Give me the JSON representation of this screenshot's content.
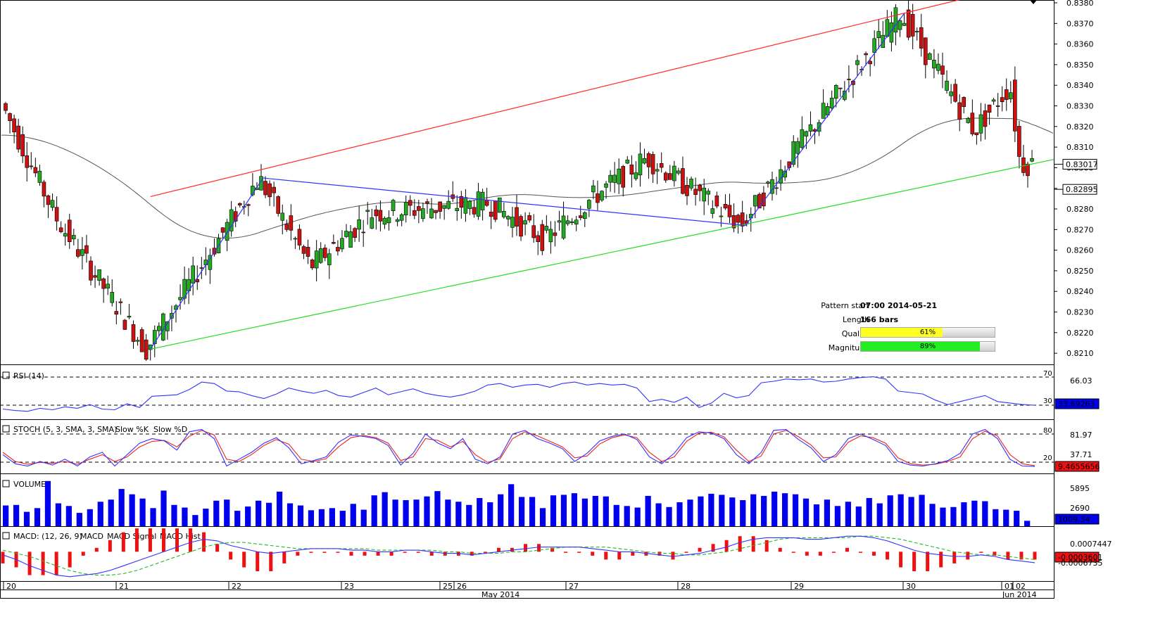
{
  "chart_data": {
    "type": "candlestick",
    "price_panel": {
      "ylim": [
        0.8208,
        0.838
      ],
      "y_ticks": [
        "0.8380",
        "0.8370",
        "0.8360",
        "0.8350",
        "0.8340",
        "0.8330",
        "0.8320",
        "0.8310",
        "0.8300",
        "0.8290",
        "0.8280",
        "0.8270",
        "0.8260",
        "0.8250",
        "0.8240",
        "0.8230",
        "0.8220",
        "0.8210"
      ],
      "current_price": "0.83017",
      "moving_average_value": "0.82895",
      "colors": {
        "up": "#22aa22",
        "down": "#cc1111",
        "resistance": "#ff2a2a",
        "support": "#22dd22",
        "pattern": "#3333ff",
        "ma": "#555555"
      },
      "swing_points": [
        {
          "time": "2014-05-20 00:00",
          "price": 0.8332
        },
        {
          "time": "2014-05-20 12:00",
          "price": 0.8275
        },
        {
          "time": "2014-05-21 07:00",
          "price": 0.8212
        },
        {
          "time": "2014-05-22 07:00",
          "price": 0.8295
        },
        {
          "time": "2014-05-22 18:00",
          "price": 0.8252
        },
        {
          "time": "2014-05-23 08:00",
          "price": 0.8278
        },
        {
          "time": "2014-05-26 08:00",
          "price": 0.8283
        },
        {
          "time": "2014-05-26 20:00",
          "price": 0.8265
        },
        {
          "time": "2014-05-27 06:00",
          "price": 0.8285
        },
        {
          "time": "2014-05-27 18:00",
          "price": 0.8305
        },
        {
          "time": "2014-05-28 14:00",
          "price": 0.8272
        },
        {
          "time": "2014-05-29 02:00",
          "price": 0.831
        },
        {
          "time": "2014-05-29 12:00",
          "price": 0.834
        },
        {
          "time": "2014-05-30 00:00",
          "price": 0.8375
        },
        {
          "time": "2014-05-30 18:00",
          "price": 0.8318
        },
        {
          "time": "2014-06-02 00:00",
          "price": 0.834
        },
        {
          "time": "2014-06-02 06:00",
          "price": 0.8302
        }
      ],
      "resistance_line": [
        {
          "time": "2014-05-21 07:00",
          "price": 0.8286
        },
        {
          "time": "2014-05-30 00:00",
          "price": 0.8375
        }
      ],
      "support_line": [
        {
          "time": "2014-05-21 07:00",
          "price": 0.8212
        },
        {
          "time": "2014-06-02 06:00",
          "price": 0.8301
        }
      ],
      "pattern_line": [
        {
          "time": "2014-05-21 07:00",
          "price": 0.8212
        },
        {
          "time": "2014-05-22 07:00",
          "price": 0.8295
        },
        {
          "time": "2014-05-28 14:00",
          "price": 0.8272
        },
        {
          "time": "2014-05-30 00:00",
          "price": 0.8375
        }
      ]
    },
    "pattern_info": {
      "rows": [
        {
          "key": "Pattern start",
          "value": "07:00 2014-05-21"
        },
        {
          "key": "Length",
          "value": "166 bars"
        }
      ],
      "quality": {
        "label": "Quality",
        "value": 61,
        "text": "61%",
        "color": "#ffff22"
      },
      "magnitude": {
        "label": "Magnitude",
        "value": 89,
        "text": "89%",
        "color": "#22ee22"
      }
    },
    "rsi": {
      "title": "RSI (14)",
      "levels": [
        "70",
        "30"
      ],
      "tick": "66.03",
      "current": "33.69263",
      "values": [
        28,
        26,
        25,
        29,
        27,
        31,
        29,
        34,
        28,
        27,
        35,
        30,
        45,
        46,
        47,
        54,
        64,
        62,
        52,
        51,
        46,
        42,
        48,
        56,
        52,
        49,
        53,
        46,
        44,
        50,
        56,
        47,
        51,
        55,
        49,
        46,
        44,
        47,
        52,
        60,
        62,
        57,
        60,
        61,
        57,
        62,
        64,
        60,
        62,
        60,
        61,
        56,
        38,
        41,
        37,
        44,
        30,
        36,
        49,
        43,
        46,
        63,
        65,
        68,
        67,
        68,
        64,
        65,
        68,
        70,
        71,
        68,
        52,
        50,
        48,
        40,
        34,
        38,
        42,
        46,
        38,
        36,
        34,
        33
      ]
    },
    "stoch": {
      "title": "STOCH (5, 3, SMA, 3, SMA)",
      "legend": [
        "Slow %K",
        "Slow %D"
      ],
      "levels": [
        "80",
        "20"
      ],
      "ticks": [
        "81.97",
        "37.71"
      ],
      "current": "9.4655656",
      "k": [
        35,
        15,
        10,
        20,
        12,
        25,
        10,
        30,
        40,
        10,
        35,
        60,
        70,
        65,
        45,
        85,
        90,
        70,
        10,
        25,
        40,
        60,
        72,
        50,
        15,
        22,
        30,
        62,
        78,
        75,
        70,
        55,
        12,
        38,
        80,
        60,
        48,
        70,
        25,
        15,
        30,
        80,
        88,
        70,
        60,
        48,
        20,
        38,
        65,
        75,
        80,
        68,
        30,
        15,
        38,
        72,
        85,
        82,
        70,
        35,
        15,
        40,
        88,
        90,
        68,
        50,
        20,
        35,
        70,
        80,
        68,
        55,
        20,
        12,
        10,
        15,
        22,
        38,
        80,
        90,
        70,
        25,
        10,
        9
      ],
      "d": [
        40,
        20,
        14,
        18,
        16,
        20,
        14,
        25,
        35,
        20,
        30,
        52,
        64,
        66,
        52,
        75,
        88,
        78,
        25,
        20,
        35,
        55,
        68,
        58,
        25,
        20,
        26,
        52,
        72,
        77,
        72,
        60,
        22,
        30,
        70,
        66,
        52,
        64,
        35,
        18,
        26,
        70,
        85,
        76,
        64,
        52,
        28,
        32,
        58,
        72,
        78,
        72,
        40,
        20,
        30,
        64,
        82,
        84,
        74,
        45,
        20,
        32,
        80,
        88,
        74,
        56,
        28,
        30,
        62,
        76,
        72,
        60,
        28,
        15,
        12,
        14,
        20,
        30,
        70,
        86,
        76,
        35,
        15,
        11
      ]
    },
    "volume": {
      "title": "VOLUME",
      "ticks": [
        "5895",
        "2690"
      ],
      "current": "1009.34",
      "values": [
        3900,
        4000,
        2700,
        3400,
        8500,
        4300,
        3800,
        2500,
        3200,
        4600,
        5000,
        7000,
        6000,
        5200,
        3400,
        6700,
        4000,
        3500,
        2100,
        3300,
        4800,
        5000,
        2900,
        3700,
        4800,
        4400,
        6500,
        4300,
        3900,
        3000,
        3200,
        3400,
        2900,
        4200,
        3100,
        5800,
        6400,
        5000,
        4900,
        5000,
        5600,
        6600,
        5000,
        4600,
        4000,
        5300,
        4500,
        6000,
        7900,
        5500,
        5500,
        3400,
        5800,
        5900,
        6200,
        5200,
        5700,
        5600,
        4000,
        3800,
        3500,
        5700,
        4300,
        3600,
        4500,
        5000,
        5600,
        6100,
        5900,
        5400,
        4900,
        6000,
        5700,
        6500,
        6200,
        6000,
        5200,
        4100,
        5000,
        3800,
        4600,
        3700,
        5300,
        4300,
        5800,
        6000,
        5500,
        5900,
        4200,
        3500,
        3600,
        4500,
        4800,
        4700,
        3200,
        3100,
        2900,
        1009
      ]
    },
    "macd": {
      "title": "MACD: (12, 26, 9)",
      "legend": [
        "MACD",
        "MACD Signal",
        "MACD Hist"
      ],
      "ticks": [
        "0.0007447"
      ],
      "current": "-0.0003601",
      "current2": "-0.0006735",
      "macd": [
        -0.0002,
        -0.0005,
        -0.0009,
        -0.0012,
        -0.0015,
        -0.0016,
        -0.0015,
        -0.0014,
        -0.0012,
        -0.0009,
        -0.0006,
        -0.0003,
        0,
        0.0003,
        0.0006,
        0.0008,
        0.0007,
        0.0004,
        0.0002,
        0,
        -0.0001,
        0,
        0.0001,
        0.0002,
        0.0002,
        0.0002,
        0.0001,
        0.0001,
        0,
        0,
        0.0001,
        0.0001,
        0,
        -0.0001,
        -0.0001,
        -0.0002,
        -0.0001,
        0,
        0.0001,
        0.0002,
        0.0003,
        0.0003,
        0.0003,
        0.0003,
        0.0002,
        0.0001,
        0,
        0,
        -0.0001,
        -0.0002,
        -0.0003,
        -0.0002,
        -0.0001,
        0.0001,
        0.0003,
        0.0006,
        0.0008,
        0.0009,
        0.0009,
        0.0009,
        0.0008,
        0.0008,
        0.0009,
        0.001,
        0.001,
        0.0009,
        0.0007,
        0.0004,
        0.0001,
        -0.0001,
        -0.0002,
        -0.0003,
        -0.0003,
        -0.0002,
        -0.0003,
        -0.0005,
        -0.0006,
        -0.0007
      ],
      "signal": [
        0.0001,
        -0.0001,
        -0.0003,
        -0.0006,
        -0.0009,
        -0.0012,
        -0.0014,
        -0.0015,
        -0.0015,
        -0.0014,
        -0.0012,
        -0.0009,
        -0.0006,
        -0.0003,
        0,
        0.0003,
        0.0005,
        0.0006,
        0.0006,
        0.0005,
        0.0004,
        0.0003,
        0.0002,
        0.0002,
        0.0002,
        0.0002,
        0.0002,
        0.0002,
        0.0001,
        0.0001,
        0.0001,
        0.0001,
        0.0001,
        0,
        0,
        -0.0001,
        -0.0001,
        -0.0001,
        0,
        0,
        0.0001,
        0.0002,
        0.0003,
        0.0003,
        0.0003,
        0.0003,
        0.0002,
        0.0001,
        0,
        -0.0001,
        -0.0001,
        -0.0002,
        -0.0002,
        -0.0001,
        0,
        0.0002,
        0.0004,
        0.0006,
        0.0008,
        0.0009,
        0.0009,
        0.0009,
        0.0009,
        0.0009,
        0.001,
        0.001,
        0.0009,
        0.0008,
        0.0006,
        0.0004,
        0.0002,
        0,
        -0.0001,
        -0.0002,
        -0.0002,
        -0.0003,
        -0.0004,
        -0.0005
      ]
    },
    "x_axis": {
      "day_labels": [
        "20",
        "21",
        "22",
        "23",
        "25",
        "26",
        "27",
        "28",
        "29",
        "30",
        "01",
        "02"
      ],
      "month_labels": [
        "May 2014",
        "Jun 2014"
      ]
    }
  }
}
